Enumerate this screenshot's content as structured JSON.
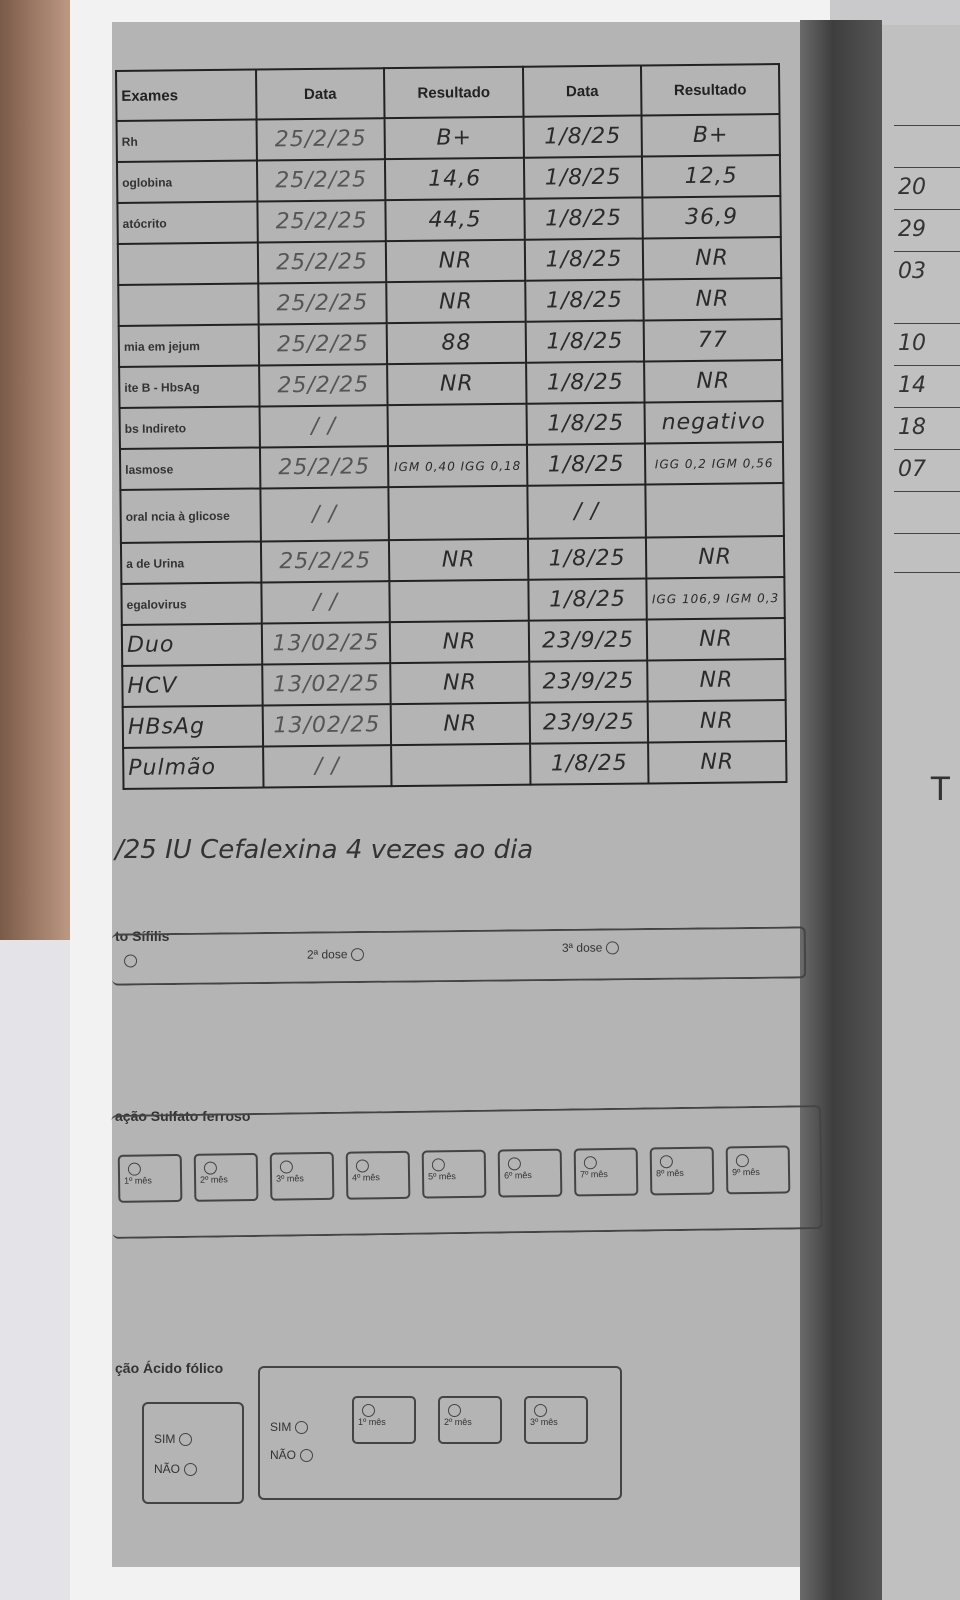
{
  "table": {
    "headers": [
      "Exames",
      "Data",
      "Resultado",
      "Data",
      "Resultado"
    ],
    "rows": [
      {
        "exam": "Rh",
        "d1": "25/2/25",
        "r1": "B+",
        "d2": "1/8/25",
        "r2": "B+"
      },
      {
        "exam": "oglobina",
        "d1": "25/2/25",
        "r1": "14,6",
        "d2": "1/8/25",
        "r2": "12,5"
      },
      {
        "exam": "atócrito",
        "d1": "25/2/25",
        "r1": "44,5",
        "d2": "1/8/25",
        "r2": "36,9"
      },
      {
        "exam": "",
        "d1": "25/2/25",
        "r1": "NR",
        "d2": "1/8/25",
        "r2": "NR"
      },
      {
        "exam": "",
        "d1": "25/2/25",
        "r1": "NR",
        "d2": "1/8/25",
        "r2": "NR"
      },
      {
        "exam": "mia em jejum",
        "d1": "25/2/25",
        "r1": "88",
        "d2": "1/8/25",
        "r2": "77"
      },
      {
        "exam": "ite B - HbsAg",
        "d1": "25/2/25",
        "r1": "NR",
        "d2": "1/8/25",
        "r2": "NR"
      },
      {
        "exam": "bs Indireto",
        "d1": "/ /",
        "r1": "",
        "d2": "1/8/25",
        "r2": "negativo"
      },
      {
        "exam": "lasmose",
        "d1": "25/2/25",
        "r1": "IGM 0,40 IGG 0,18",
        "d2": "1/8/25",
        "r2": "IGG 0,2 IGM 0,56"
      },
      {
        "exam": "oral ncia à glicose",
        "d1": "/ /",
        "r1": "",
        "d2": "/ /",
        "r2": ""
      },
      {
        "exam": "a de Urina",
        "d1": "25/2/25",
        "r1": "NR",
        "d2": "1/8/25",
        "r2": "NR"
      },
      {
        "exam": "egalovirus",
        "d1": "/ /",
        "r1": "",
        "d2": "1/8/25",
        "r2": "IGG 106,9 IGM 0,3"
      },
      {
        "exam": "Duo",
        "d1": "13/02/25",
        "r1": "NR",
        "d2": "23/9/25",
        "r2": "NR"
      },
      {
        "exam": "HCV",
        "d1": "13/02/25",
        "r1": "NR",
        "d2": "23/9/25",
        "r2": "NR"
      },
      {
        "exam": "HBsAg",
        "d1": "13/02/25",
        "r1": "NR",
        "d2": "23/9/25",
        "r2": "NR"
      },
      {
        "exam": "Pulmão",
        "d1": "/ /",
        "r1": "",
        "d2": "1/8/25",
        "r2": "NR"
      }
    ]
  },
  "note": "/25  IU  Cefalexina  4 vezes ao dia",
  "sifilis": {
    "title": "to Sífilis",
    "dose2": "2ª dose",
    "dose3": "3ª dose",
    "blank": "/ /"
  },
  "sulfato": {
    "title": "ação Sulfato ferroso",
    "months": [
      "1º mês",
      "2º mês",
      "3º mês",
      "4º mês",
      "5º mês",
      "6º mês",
      "7º mês",
      "8º mês",
      "9º mês"
    ]
  },
  "acido": {
    "title": "ção Ácido fólico",
    "sim": "SIM",
    "nao": "NÃO",
    "months": [
      "1º mês",
      "2º mês",
      "3º mês"
    ]
  },
  "right_page": {
    "cells": [
      "20",
      "29",
      "03",
      "10",
      "14",
      "18",
      "07"
    ],
    "letter": "T"
  }
}
